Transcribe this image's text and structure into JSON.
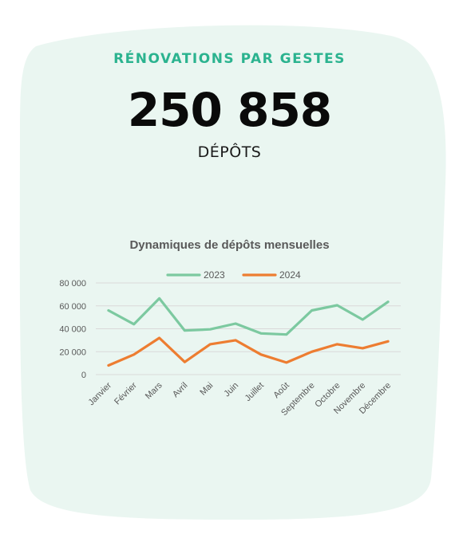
{
  "card": {
    "title": "RÉNOVATIONS PAR GESTES",
    "big_number": "250 858",
    "big_label": "DÉPÔTS",
    "background_color": "#eaf6f1",
    "accent_color": "#2bb38f"
  },
  "chart_data": {
    "type": "line",
    "title": "Dynamiques de dépôts mensuelles",
    "categories": [
      "Janvier",
      "Février",
      "Mars",
      "Avril",
      "Mai",
      "Juin",
      "Juillet",
      "Août",
      "Septembre",
      "Octobre",
      "Novembre",
      "Décembre"
    ],
    "series": [
      {
        "name": "2023",
        "color": "#7cc9a0",
        "values": [
          56000,
          44000,
          66500,
          38500,
          39500,
          44500,
          36000,
          35000,
          56000,
          60500,
          48000,
          63500
        ]
      },
      {
        "name": "2024",
        "color": "#ed7d31",
        "values": [
          8000,
          17500,
          32000,
          11000,
          26500,
          30000,
          17500,
          10500,
          20000,
          26500,
          23000,
          29000
        ]
      }
    ],
    "ylim": [
      0,
      80000
    ],
    "yticks": [
      0,
      20000,
      40000,
      60000,
      80000
    ],
    "ytick_labels": [
      "0",
      "20 000",
      "40 000",
      "60 000",
      "80 000"
    ],
    "grid": true,
    "legend_position": "top"
  }
}
